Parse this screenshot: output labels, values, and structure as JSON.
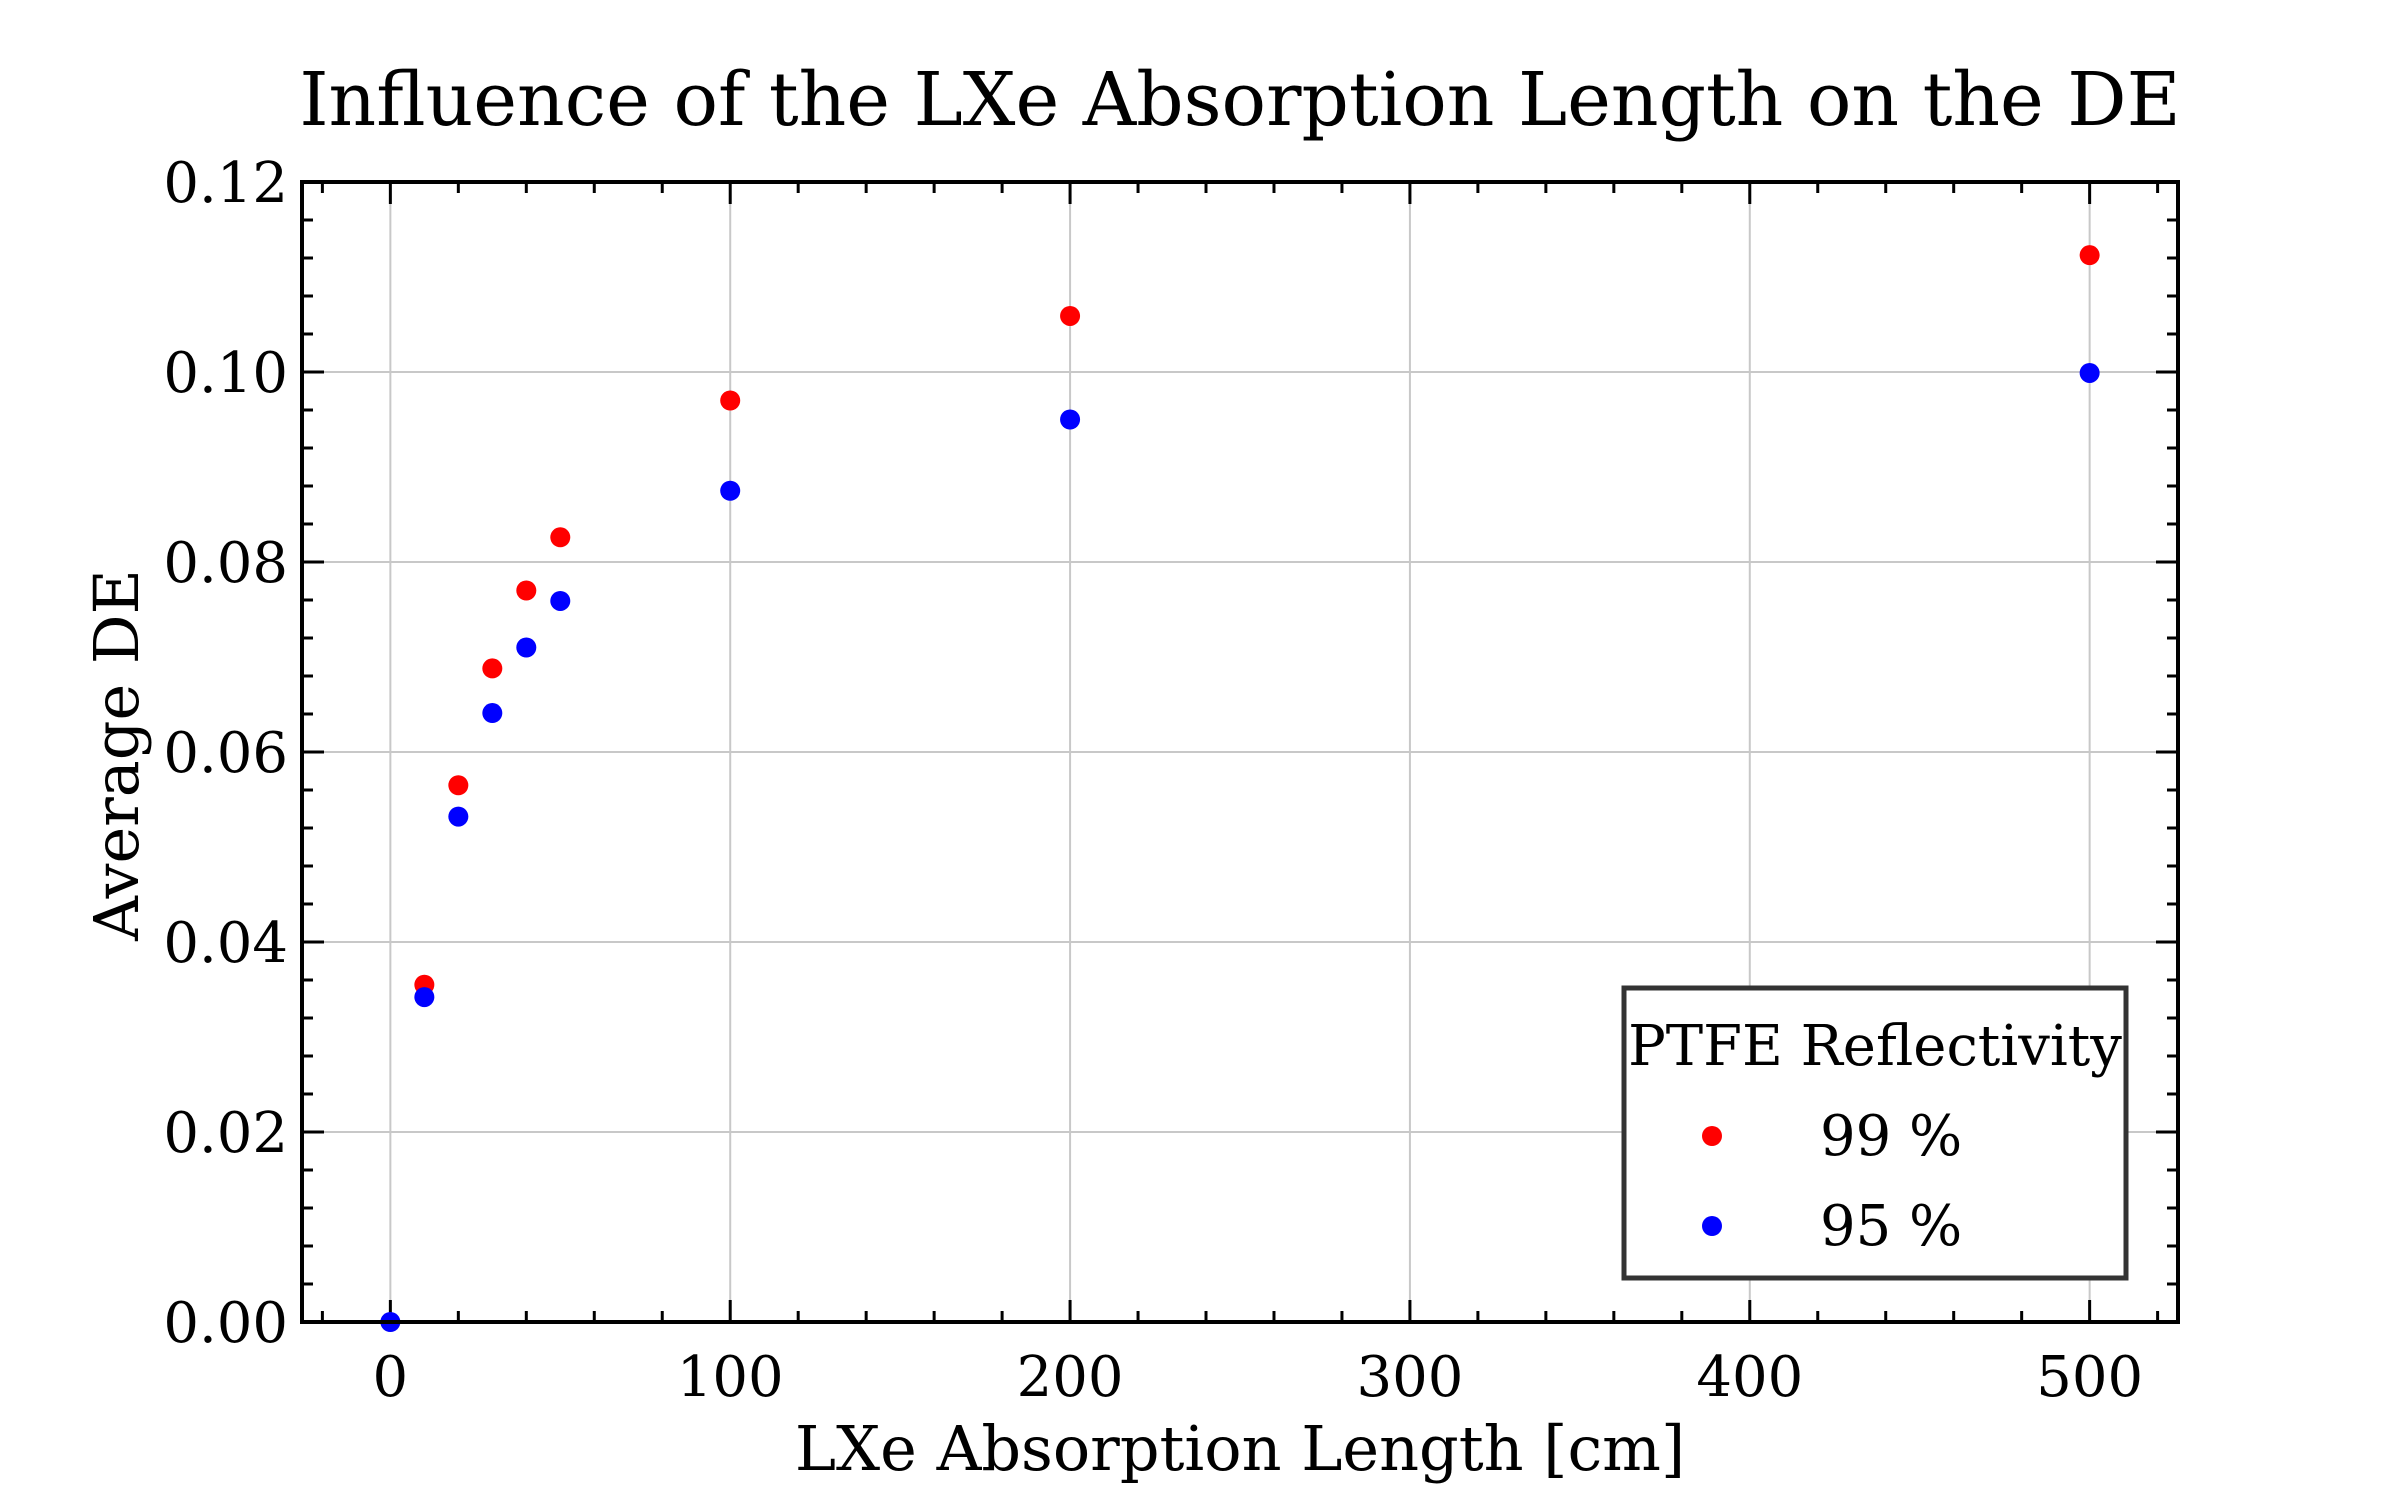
{
  "chart_data": {
    "type": "scatter",
    "title": "Influence of the LXe Absorption Length on the DE",
    "xlabel": "LXe Absorption Length [cm]",
    "ylabel": "Average DE",
    "xlim": [
      -26,
      526
    ],
    "ylim": [
      0.0,
      0.12
    ],
    "xticks": [
      0,
      100,
      200,
      300,
      400,
      500
    ],
    "xtick_labels": [
      "0",
      "100",
      "200",
      "300",
      "400",
      "500"
    ],
    "yticks": [
      0.0,
      0.02,
      0.04,
      0.06,
      0.08,
      0.1,
      0.12
    ],
    "ytick_labels": [
      "0.00",
      "0.02",
      "0.04",
      "0.06",
      "0.08",
      "0.10",
      "0.12"
    ],
    "grid": true,
    "legend": {
      "title": "PTFE Reflectivity",
      "position": "lower-right"
    },
    "series": [
      {
        "name": "99 %",
        "color": "#ff0000",
        "x": [
          10,
          20,
          30,
          40,
          50,
          100,
          200,
          500
        ],
        "y": [
          0.0355,
          0.0565,
          0.0688,
          0.077,
          0.0826,
          0.097,
          0.1059,
          0.1123
        ]
      },
      {
        "name": "95 %",
        "color": "#0000ff",
        "x": [
          0,
          10,
          20,
          30,
          40,
          50,
          100,
          200,
          500
        ],
        "y": [
          0.0,
          0.0342,
          0.0532,
          0.0641,
          0.071,
          0.0759,
          0.0875,
          0.095,
          0.0999
        ]
      }
    ]
  }
}
